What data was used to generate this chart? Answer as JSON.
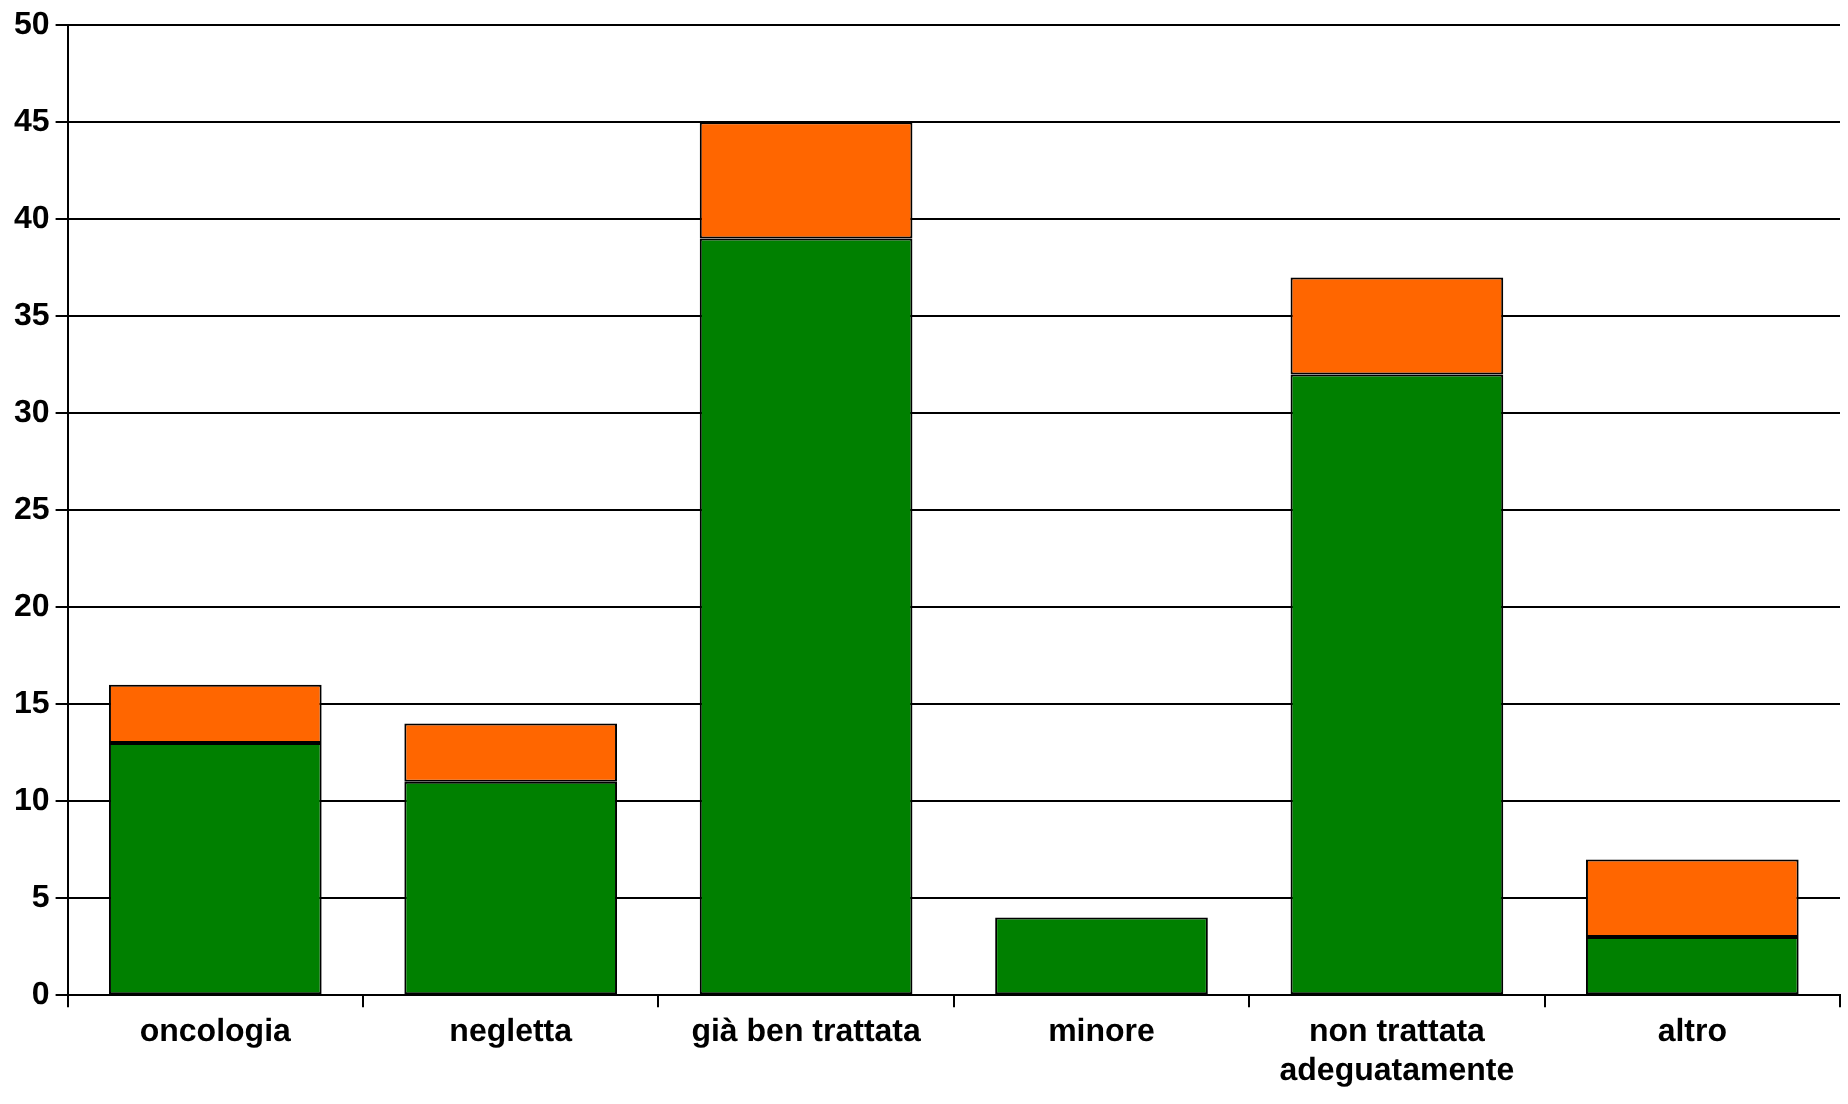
{
  "chart_data": {
    "type": "bar",
    "stacked": true,
    "categories": [
      "oncologia",
      "negletta",
      "già ben trattata",
      "minore",
      "non trattata adeguatamente",
      "altro"
    ],
    "series": [
      {
        "color": "#008000",
        "values": [
          13,
          11,
          39,
          4,
          32,
          3
        ]
      },
      {
        "color": "#ff6600",
        "values": [
          3,
          3,
          6,
          0,
          5,
          4
        ]
      }
    ],
    "ylim": [
      0,
      50
    ],
    "yticks": [
      0,
      5,
      10,
      15,
      20,
      25,
      30,
      35,
      40,
      45,
      50
    ],
    "grid": "y",
    "legend": false
  }
}
